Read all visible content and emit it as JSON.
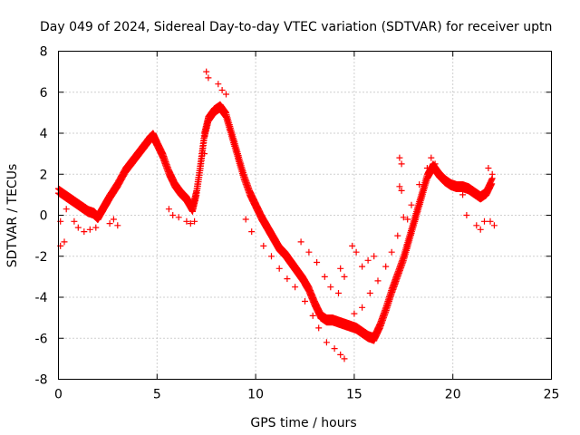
{
  "chart_data": {
    "type": "scatter",
    "title": "Day 049 of 2024, Sidereal Day-to-day VTEC variation (SDTVAR) for receiver uptn",
    "xlabel": "GPS time / hours",
    "ylabel": "SDTVAR / TECUs",
    "xlim": [
      0,
      25
    ],
    "ylim": [
      -8,
      8
    ],
    "xticks": [
      0,
      5,
      10,
      15,
      20,
      25
    ],
    "yticks": [
      -8,
      -6,
      -4,
      -2,
      0,
      2,
      4,
      6,
      8
    ],
    "grid": true,
    "marker": "+",
    "color": "#ff0000",
    "series": [
      {
        "name": "SDTVAR",
        "trace": [
          [
            0.0,
            1.3
          ],
          [
            0.3,
            1.1
          ],
          [
            0.6,
            0.9
          ],
          [
            0.9,
            0.7
          ],
          [
            1.2,
            0.5
          ],
          [
            1.5,
            0.3
          ],
          [
            1.8,
            0.2
          ],
          [
            2.0,
            0.0
          ],
          [
            2.3,
            0.5
          ],
          [
            2.6,
            1.0
          ],
          [
            3.0,
            1.6
          ],
          [
            3.4,
            2.3
          ],
          [
            3.8,
            2.8
          ],
          [
            4.2,
            3.3
          ],
          [
            4.6,
            3.8
          ],
          [
            4.8,
            4.0
          ],
          [
            5.0,
            3.6
          ],
          [
            5.3,
            3.0
          ],
          [
            5.6,
            2.2
          ],
          [
            5.9,
            1.6
          ],
          [
            6.2,
            1.2
          ],
          [
            6.5,
            0.9
          ],
          [
            6.8,
            0.4
          ],
          [
            7.0,
            1.2
          ],
          [
            7.2,
            2.5
          ],
          [
            7.4,
            4.0
          ],
          [
            7.6,
            4.8
          ],
          [
            7.9,
            5.2
          ],
          [
            8.2,
            5.4
          ],
          [
            8.5,
            5.0
          ],
          [
            8.8,
            4.0
          ],
          [
            9.1,
            3.0
          ],
          [
            9.4,
            2.0
          ],
          [
            9.7,
            1.2
          ],
          [
            10.0,
            0.6
          ],
          [
            10.3,
            0.0
          ],
          [
            10.6,
            -0.5
          ],
          [
            10.9,
            -1.0
          ],
          [
            11.2,
            -1.5
          ],
          [
            11.5,
            -1.8
          ],
          [
            11.8,
            -2.2
          ],
          [
            12.1,
            -2.6
          ],
          [
            12.4,
            -3.0
          ],
          [
            12.7,
            -3.5
          ],
          [
            13.0,
            -4.2
          ],
          [
            13.3,
            -4.8
          ],
          [
            13.6,
            -5.0
          ],
          [
            13.9,
            -5.0
          ],
          [
            14.2,
            -5.1
          ],
          [
            14.5,
            -5.2
          ],
          [
            14.8,
            -5.3
          ],
          [
            15.1,
            -5.4
          ],
          [
            15.4,
            -5.6
          ],
          [
            15.7,
            -5.8
          ],
          [
            16.0,
            -5.9
          ],
          [
            16.3,
            -5.3
          ],
          [
            16.6,
            -4.5
          ],
          [
            16.9,
            -3.6
          ],
          [
            17.2,
            -2.8
          ],
          [
            17.5,
            -2.0
          ],
          [
            17.8,
            -1.0
          ],
          [
            18.1,
            0.0
          ],
          [
            18.4,
            1.0
          ],
          [
            18.7,
            2.0
          ],
          [
            19.0,
            2.5
          ],
          [
            19.3,
            2.1
          ],
          [
            19.6,
            1.8
          ],
          [
            19.9,
            1.6
          ],
          [
            20.2,
            1.5
          ],
          [
            20.5,
            1.5
          ],
          [
            20.8,
            1.4
          ],
          [
            21.1,
            1.2
          ],
          [
            21.4,
            1.0
          ],
          [
            21.7,
            1.2
          ],
          [
            22.0,
            1.8
          ]
        ]
      }
    ],
    "points": [
      [
        0.1,
        -1.5
      ],
      [
        0.3,
        -1.3
      ],
      [
        0.1,
        -0.3
      ],
      [
        0.4,
        0.3
      ],
      [
        0.8,
        -0.3
      ],
      [
        1.0,
        -0.6
      ],
      [
        1.3,
        -0.8
      ],
      [
        1.6,
        -0.7
      ],
      [
        1.9,
        -0.6
      ],
      [
        2.8,
        -0.2
      ],
      [
        2.6,
        -0.4
      ],
      [
        3.0,
        -0.5
      ],
      [
        7.5,
        7.0
      ],
      [
        7.6,
        6.7
      ],
      [
        8.1,
        6.4
      ],
      [
        8.3,
        6.1
      ],
      [
        8.5,
        5.9
      ],
      [
        7.4,
        3.0
      ],
      [
        6.9,
        -0.3
      ],
      [
        6.7,
        -0.4
      ],
      [
        6.5,
        -0.3
      ],
      [
        5.6,
        0.3
      ],
      [
        5.8,
        0.0
      ],
      [
        6.1,
        -0.1
      ],
      [
        9.5,
        -0.2
      ],
      [
        9.8,
        -0.8
      ],
      [
        10.4,
        -1.5
      ],
      [
        10.8,
        -2.0
      ],
      [
        11.2,
        -2.6
      ],
      [
        11.6,
        -3.1
      ],
      [
        12.0,
        -3.5
      ],
      [
        12.5,
        -4.2
      ],
      [
        12.9,
        -4.9
      ],
      [
        13.2,
        -5.5
      ],
      [
        13.6,
        -6.2
      ],
      [
        14.0,
        -6.5
      ],
      [
        14.3,
        -6.8
      ],
      [
        14.5,
        -7.0
      ],
      [
        12.3,
        -1.3
      ],
      [
        12.7,
        -1.8
      ],
      [
        13.1,
        -2.3
      ],
      [
        13.5,
        -3.0
      ],
      [
        13.8,
        -3.5
      ],
      [
        14.2,
        -3.8
      ],
      [
        14.5,
        -3.0
      ],
      [
        14.3,
        -2.6
      ],
      [
        15.0,
        -4.8
      ],
      [
        15.4,
        -4.5
      ],
      [
        15.8,
        -3.8
      ],
      [
        16.2,
        -3.2
      ],
      [
        16.6,
        -2.5
      ],
      [
        16.9,
        -1.8
      ],
      [
        17.2,
        -1.0
      ],
      [
        15.4,
        -2.5
      ],
      [
        15.7,
        -2.2
      ],
      [
        16.0,
        -2.0
      ],
      [
        14.9,
        -1.5
      ],
      [
        15.1,
        -1.8
      ],
      [
        17.3,
        2.8
      ],
      [
        17.4,
        2.5
      ],
      [
        17.3,
        1.4
      ],
      [
        17.4,
        1.2
      ],
      [
        17.5,
        -0.1
      ],
      [
        18.9,
        2.8
      ],
      [
        19.1,
        2.5
      ],
      [
        20.7,
        0.0
      ],
      [
        21.2,
        -0.5
      ],
      [
        21.4,
        -0.7
      ],
      [
        21.6,
        -0.3
      ],
      [
        21.8,
        2.3
      ],
      [
        22.0,
        2.0
      ],
      [
        22.1,
        -0.5
      ],
      [
        21.9,
        -0.3
      ],
      [
        20.5,
        1.0
      ],
      [
        20.9,
        1.2
      ],
      [
        19.8,
        1.6
      ],
      [
        18.7,
        2.3
      ],
      [
        18.3,
        1.5
      ],
      [
        17.9,
        0.5
      ],
      [
        17.7,
        -0.2
      ]
    ]
  }
}
